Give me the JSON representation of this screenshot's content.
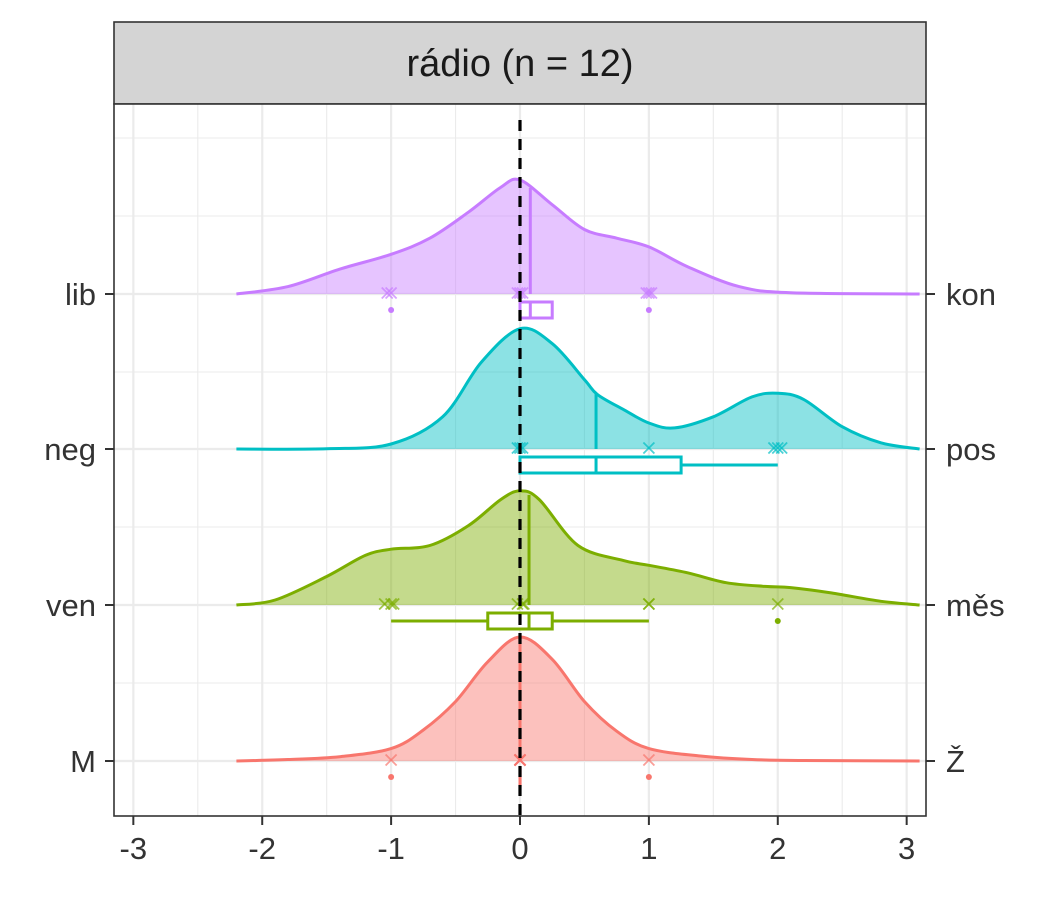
{
  "chart_data": {
    "type": "ridgeline",
    "title": "rádio (n = 12)",
    "xlabel": "",
    "ylabel": "",
    "xlim": [
      -3.15,
      3.15
    ],
    "x_ticks": [
      -3,
      -2,
      -1,
      0,
      1,
      2,
      3
    ],
    "x_tick_labels": [
      "-3",
      "-2",
      "-1",
      "0",
      "1",
      "2",
      "3"
    ],
    "grid": true,
    "reference_line_x": 0,
    "series": [
      {
        "left_label": "M",
        "right_label": "Ž",
        "color": "#F8766D",
        "density": [
          [
            -2.2,
            0
          ],
          [
            -1.8,
            0.012
          ],
          [
            -1.4,
            0.035
          ],
          [
            -1.0,
            0.1
          ],
          [
            -0.75,
            0.25
          ],
          [
            -0.5,
            0.48
          ],
          [
            -0.25,
            0.8
          ],
          [
            0,
            1.0
          ],
          [
            0.25,
            0.82
          ],
          [
            0.5,
            0.48
          ],
          [
            0.75,
            0.24
          ],
          [
            1.0,
            0.1
          ],
          [
            1.4,
            0.04
          ],
          [
            1.8,
            0.012
          ],
          [
            2.2,
            0.004
          ],
          [
            3.1,
            0
          ]
        ],
        "median": 0,
        "box": [
          0,
          0
        ],
        "whiskers": [
          0,
          0
        ],
        "points_x": [
          -1,
          0,
          0,
          0,
          0,
          0,
          0,
          0,
          0,
          0,
          0,
          1
        ],
        "outliers": [
          -1,
          1
        ]
      },
      {
        "left_label": "ven",
        "right_label": "měs",
        "color": "#7CAE00",
        "density": [
          [
            -2.2,
            0
          ],
          [
            -1.9,
            0.04
          ],
          [
            -1.5,
            0.23
          ],
          [
            -1.2,
            0.4
          ],
          [
            -1.0,
            0.45
          ],
          [
            -0.7,
            0.48
          ],
          [
            -0.4,
            0.64
          ],
          [
            -0.15,
            0.85
          ],
          [
            0,
            0.92
          ],
          [
            0.15,
            0.85
          ],
          [
            0.45,
            0.48
          ],
          [
            0.8,
            0.36
          ],
          [
            1.0,
            0.32
          ],
          [
            1.3,
            0.26
          ],
          [
            1.6,
            0.18
          ],
          [
            1.9,
            0.15
          ],
          [
            2.1,
            0.14
          ],
          [
            2.4,
            0.1
          ],
          [
            2.8,
            0.03
          ],
          [
            3.1,
            0
          ]
        ],
        "median": 0.07,
        "box": [
          -0.25,
          0.25
        ],
        "whiskers": [
          -1,
          1
        ],
        "points_x": [
          -1.05,
          -1,
          -0.98,
          -0.02,
          0.02,
          0.03,
          1,
          1,
          2
        ],
        "outliers": [
          2
        ]
      },
      {
        "left_label": "neg",
        "right_label": "pos",
        "color": "#00BFC4",
        "density": [
          [
            -2.2,
            0
          ],
          [
            -1.5,
            0.002
          ],
          [
            -1.0,
            0.04
          ],
          [
            -0.6,
            0.26
          ],
          [
            -0.3,
            0.7
          ],
          [
            0,
            0.97
          ],
          [
            0.25,
            0.85
          ],
          [
            0.5,
            0.56
          ],
          [
            0.6,
            0.44
          ],
          [
            0.8,
            0.32
          ],
          [
            1.0,
            0.21
          ],
          [
            1.2,
            0.17
          ],
          [
            1.5,
            0.26
          ],
          [
            1.8,
            0.42
          ],
          [
            2.0,
            0.45
          ],
          [
            2.2,
            0.4
          ],
          [
            2.5,
            0.18
          ],
          [
            2.8,
            0.05
          ],
          [
            3.1,
            0
          ]
        ],
        "median": 0.59,
        "box": [
          0,
          1.25
        ],
        "whiskers": [
          0,
          2
        ],
        "points_x": [
          -0.02,
          0,
          0.02,
          1,
          1.97,
          2,
          2.03
        ],
        "outliers": []
      },
      {
        "left_label": "lib",
        "right_label": "kon",
        "color": "#C77CFF",
        "density": [
          [
            -2.2,
            0
          ],
          [
            -1.8,
            0.06
          ],
          [
            -1.4,
            0.2
          ],
          [
            -1.0,
            0.32
          ],
          [
            -0.7,
            0.45
          ],
          [
            -0.4,
            0.66
          ],
          [
            -0.15,
            0.86
          ],
          [
            0,
            0.92
          ],
          [
            0.25,
            0.72
          ],
          [
            0.5,
            0.52
          ],
          [
            0.75,
            0.45
          ],
          [
            1.0,
            0.38
          ],
          [
            1.3,
            0.22
          ],
          [
            1.7,
            0.06
          ],
          [
            2.1,
            0.01
          ],
          [
            3.1,
            0
          ]
        ],
        "median": 0.08,
        "box": [
          0,
          0.25
        ],
        "whiskers": [
          0,
          0.25
        ],
        "points_x": [
          -1.03,
          -1,
          -0.02,
          0,
          0.02,
          0.98,
          1,
          1.02
        ],
        "outliers": [
          -1,
          1
        ]
      }
    ]
  }
}
